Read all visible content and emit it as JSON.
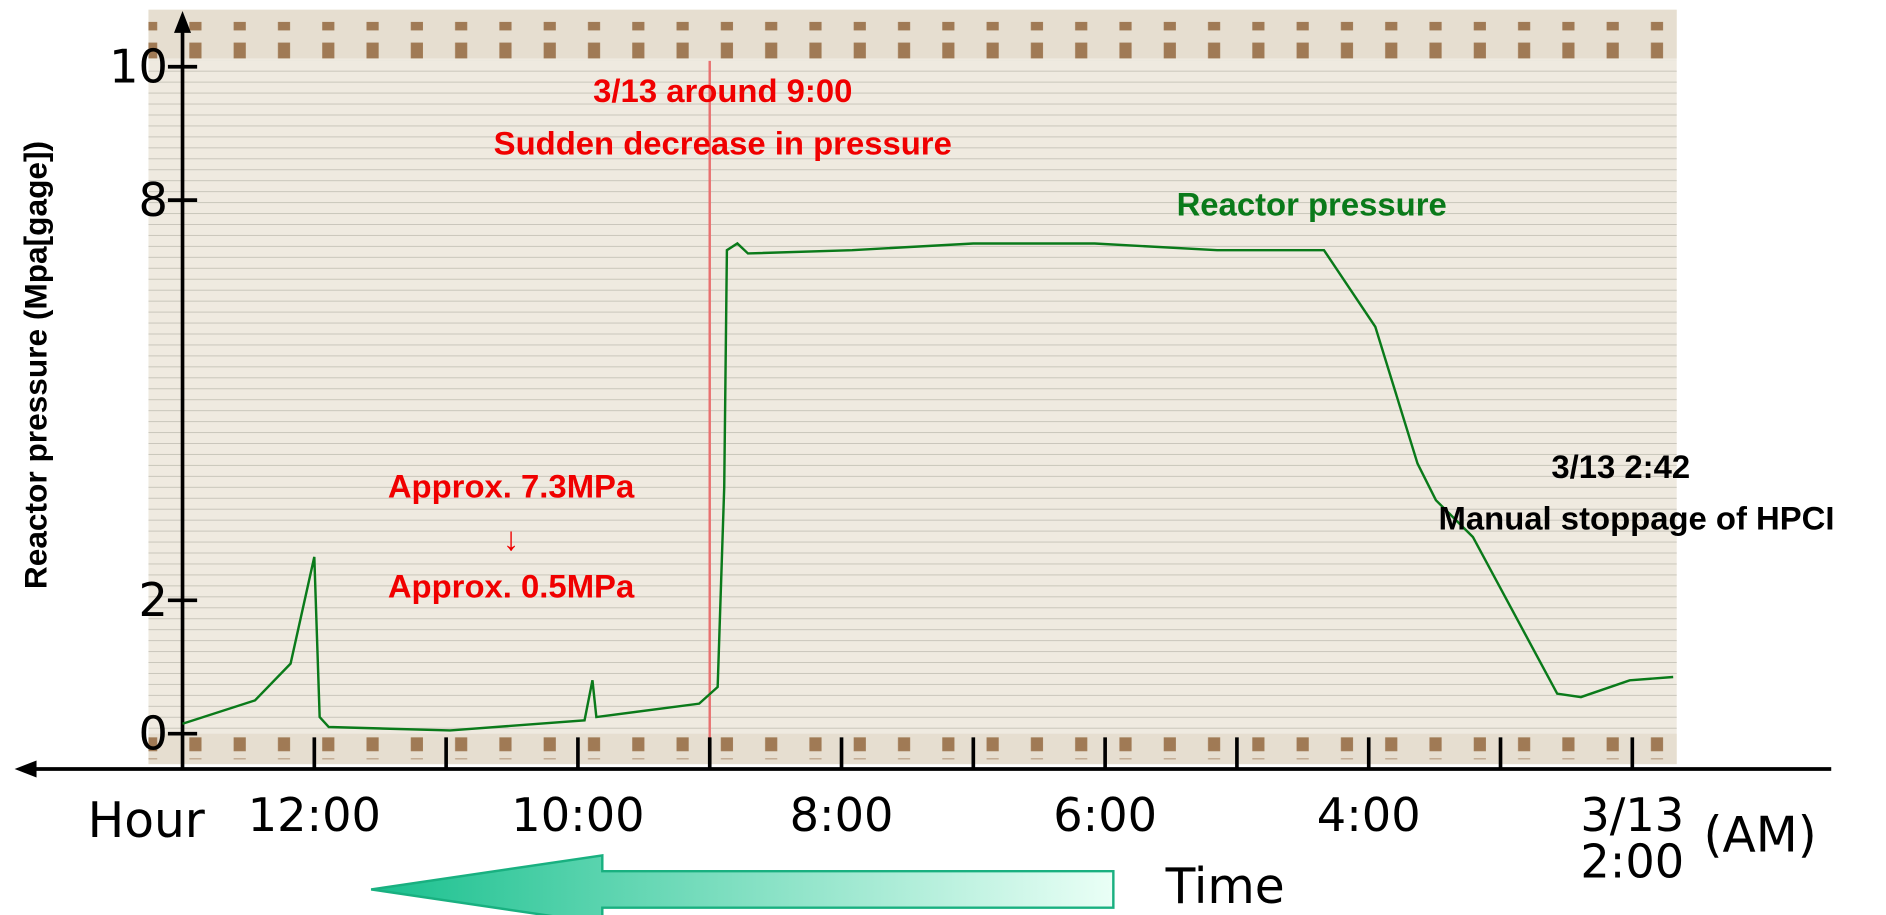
{
  "chart_data": {
    "type": "line",
    "y_label": "Reactor pressure (Mpa[gage])",
    "x_label": "Hour",
    "x_unit": "(AM)",
    "time_label": "Time",
    "xlim": [
      13,
      0.5
    ],
    "ylim": [
      0,
      10.8
    ],
    "xticks": [
      {
        "value": 12,
        "label": "12:00"
      },
      {
        "value": 10,
        "label": "10:00"
      },
      {
        "value": 8,
        "label": "8:00"
      },
      {
        "value": 6,
        "label": "6:00"
      },
      {
        "value": 4,
        "label": "4:00"
      },
      {
        "value": 2,
        "label": "3/13\n2:00"
      }
    ],
    "xminorticks": [
      11,
      9,
      7,
      5,
      3
    ],
    "yticks": [
      0,
      2,
      8,
      10
    ],
    "vline": {
      "x": 9,
      "color": "#e87070"
    },
    "x": [
      13,
      12.45,
      12.18,
      12.0,
      11.96,
      11.89,
      10.97,
      9.95,
      9.89,
      9.86,
      9.08,
      8.94,
      8.89,
      8.87,
      8.79,
      8.71,
      7.92,
      7.0,
      6.08,
      5.15,
      4.34,
      3.95,
      3.63,
      3.49,
      3.21,
      2.57,
      2.39,
      2.02,
      1.69
    ],
    "series": [
      {
        "name": "Reactor pressure",
        "color": "#0a7a1a",
        "values": [
          0.15,
          0.5,
          1.05,
          2.65,
          0.25,
          0.1,
          0.05,
          0.2,
          0.8,
          0.25,
          0.45,
          0.7,
          3.7,
          7.25,
          7.35,
          7.2,
          7.25,
          7.35,
          7.35,
          7.25,
          7.25,
          6.1,
          4.05,
          3.5,
          2.95,
          0.6,
          0.55,
          0.8,
          0.85
        ]
      }
    ],
    "annotations": {
      "event_time": "3/13 around 9:00",
      "event_text": "Sudden decrease in pressure",
      "drop_from": "Approx. 7.3MPa",
      "drop_arrow": "↓",
      "drop_to": "Approx. 0.5MPa",
      "hpci_time": "3/13 2:42",
      "hpci_text": "Manual stoppage of HPCI"
    }
  }
}
